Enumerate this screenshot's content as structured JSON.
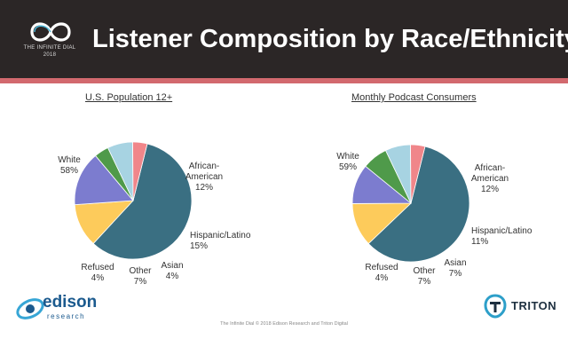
{
  "header": {
    "title": "Listener Composition by Race/Ethnicity",
    "logo_text": "THE INFINITE DIAL",
    "logo_year": "2018"
  },
  "footer": {
    "text": "The Infinite Dial  © 2018 Edison Research and Triton Digital"
  },
  "brands": {
    "edison_name": "edison",
    "edison_sub": "research",
    "triton_name": "TRITON"
  },
  "colors": {
    "White": "#3a6f82",
    "African-American": "#fdcb5b",
    "Hispanic/Latino": "#7c7ccf",
    "Asian": "#4f9a4a",
    "Other": "#a7d3e2",
    "Refused": "#f0868a"
  },
  "chart_data": [
    {
      "type": "pie",
      "title": "U.S. Population 12+",
      "categories": [
        "White",
        "African-American",
        "Hispanic/Latino",
        "Asian",
        "Other",
        "Refused"
      ],
      "values": [
        58,
        12,
        15,
        4,
        7,
        4
      ],
      "labels": [
        [
          "White",
          "58%"
        ],
        [
          "African-",
          "American",
          "12%"
        ],
        [
          "Hispanic/Latino",
          "15%"
        ],
        [
          "Asian",
          "4%"
        ],
        [
          "Other",
          "7%"
        ],
        [
          "Refused",
          "4%"
        ]
      ]
    },
    {
      "type": "pie",
      "title": "Monthly Podcast Consumers",
      "categories": [
        "White",
        "African-American",
        "Hispanic/Latino",
        "Asian",
        "Other",
        "Refused"
      ],
      "values": [
        59,
        12,
        11,
        7,
        7,
        4
      ],
      "labels": [
        [
          "White",
          "59%"
        ],
        [
          "African-",
          "American",
          "12%"
        ],
        [
          "Hispanic/Latino",
          "11%"
        ],
        [
          "Asian",
          "7%"
        ],
        [
          "Other",
          "7%"
        ],
        [
          "Refused",
          "4%"
        ]
      ]
    }
  ]
}
